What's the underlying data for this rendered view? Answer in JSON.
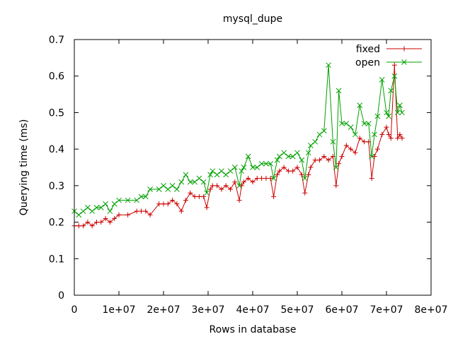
{
  "chart_data": {
    "type": "line",
    "title": "mysql_dupe",
    "xlabel": "Rows in database",
    "ylabel": "Querying time (ms)",
    "xlim": [
      0,
      80000000
    ],
    "ylim": [
      0,
      0.7
    ],
    "x_ticks": [
      0,
      10000000,
      20000000,
      30000000,
      40000000,
      50000000,
      60000000,
      70000000,
      80000000
    ],
    "x_tick_labels": [
      "0",
      "1e+07",
      "2e+07",
      "3e+07",
      "4e+07",
      "5e+07",
      "6e+07",
      "7e+07",
      "8e+07"
    ],
    "y_ticks": [
      0,
      0.1,
      0.2,
      0.3,
      0.4,
      0.5,
      0.6,
      0.7
    ],
    "y_tick_labels": [
      "0",
      "0.1",
      "0.2",
      "0.3",
      "0.4",
      "0.5",
      "0.6",
      "0.7"
    ],
    "grid": false,
    "legend_position": "top-right",
    "series": [
      {
        "name": "fixed",
        "color": "#cc0000",
        "marker": "plus",
        "x": [
          0,
          1000000,
          2000000,
          3000000,
          4000000,
          5000000,
          6000000,
          7000000,
          8000000,
          9000000,
          10000000,
          12000000,
          14000000,
          15000000,
          16000000,
          17000000,
          19000000,
          20000000,
          21000000,
          22000000,
          23000000,
          24000000,
          25000000,
          26000000,
          27000000,
          28000000,
          29000000,
          29700000,
          30500000,
          31000000,
          32000000,
          33000000,
          34000000,
          35000000,
          36000000,
          37000000,
          37500000,
          38000000,
          39000000,
          40000000,
          41000000,
          42000000,
          43000000,
          44000000,
          44700000,
          45500000,
          46000000,
          47000000,
          48000000,
          49000000,
          50000000,
          51000000,
          51700000,
          52500000,
          53000000,
          54000000,
          55000000,
          56000000,
          57000000,
          58000000,
          58700000,
          59300000,
          60000000,
          61000000,
          62000000,
          63000000,
          64000000,
          65000000,
          66000000,
          66700000,
          67300000,
          68000000,
          69000000,
          70000000,
          70500000,
          71000000,
          71800000,
          72500000,
          73000000,
          73500000
        ],
        "y": [
          0.19,
          0.19,
          0.19,
          0.2,
          0.19,
          0.2,
          0.2,
          0.21,
          0.2,
          0.21,
          0.22,
          0.22,
          0.23,
          0.23,
          0.23,
          0.22,
          0.25,
          0.25,
          0.25,
          0.26,
          0.25,
          0.23,
          0.26,
          0.28,
          0.27,
          0.27,
          0.27,
          0.24,
          0.29,
          0.3,
          0.3,
          0.29,
          0.3,
          0.29,
          0.31,
          0.26,
          0.3,
          0.31,
          0.32,
          0.31,
          0.32,
          0.32,
          0.32,
          0.32,
          0.27,
          0.33,
          0.34,
          0.35,
          0.34,
          0.34,
          0.35,
          0.33,
          0.28,
          0.33,
          0.35,
          0.37,
          0.37,
          0.38,
          0.37,
          0.38,
          0.3,
          0.36,
          0.38,
          0.41,
          0.4,
          0.39,
          0.43,
          0.42,
          0.42,
          0.32,
          0.38,
          0.4,
          0.44,
          0.46,
          0.44,
          0.43,
          0.63,
          0.43,
          0.44,
          0.43
        ]
      },
      {
        "name": "open",
        "color": "#00a000",
        "marker": "cross",
        "x": [
          0,
          1000000,
          2000000,
          3000000,
          4000000,
          5000000,
          6000000,
          7000000,
          8000000,
          9000000,
          10000000,
          12000000,
          14000000,
          15000000,
          16000000,
          17000000,
          19000000,
          20000000,
          21000000,
          22000000,
          23000000,
          24000000,
          25000000,
          26000000,
          27000000,
          28000000,
          29000000,
          29700000,
          30500000,
          31000000,
          32000000,
          33000000,
          34000000,
          35000000,
          36000000,
          37000000,
          37500000,
          38000000,
          39000000,
          40000000,
          41000000,
          42000000,
          43000000,
          44000000,
          44700000,
          45500000,
          46000000,
          47000000,
          48000000,
          49000000,
          50000000,
          51000000,
          51700000,
          52500000,
          53000000,
          54000000,
          55000000,
          56000000,
          57000000,
          58000000,
          58700000,
          59300000,
          60000000,
          61000000,
          62000000,
          63000000,
          64000000,
          65000000,
          66000000,
          66700000,
          67300000,
          68000000,
          69000000,
          70000000,
          70500000,
          71000000,
          71800000,
          72500000,
          73000000,
          73500000
        ],
        "y": [
          0.23,
          0.22,
          0.23,
          0.24,
          0.23,
          0.24,
          0.24,
          0.25,
          0.23,
          0.25,
          0.26,
          0.26,
          0.26,
          0.27,
          0.27,
          0.29,
          0.29,
          0.3,
          0.29,
          0.3,
          0.29,
          0.31,
          0.33,
          0.31,
          0.31,
          0.32,
          0.31,
          0.28,
          0.33,
          0.34,
          0.33,
          0.34,
          0.33,
          0.34,
          0.35,
          0.3,
          0.34,
          0.35,
          0.38,
          0.35,
          0.35,
          0.36,
          0.36,
          0.36,
          0.32,
          0.37,
          0.38,
          0.39,
          0.38,
          0.38,
          0.39,
          0.37,
          0.32,
          0.39,
          0.41,
          0.42,
          0.44,
          0.45,
          0.63,
          0.42,
          0.35,
          0.56,
          0.47,
          0.47,
          0.46,
          0.44,
          0.52,
          0.47,
          0.47,
          0.38,
          0.44,
          0.49,
          0.59,
          0.5,
          0.49,
          0.56,
          0.6,
          0.5,
          0.52,
          0.5
        ]
      }
    ]
  }
}
